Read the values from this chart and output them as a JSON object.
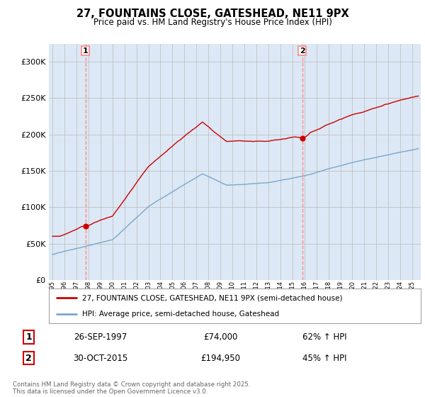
{
  "title": "27, FOUNTAINS CLOSE, GATESHEAD, NE11 9PX",
  "subtitle": "Price paid vs. HM Land Registry's House Price Index (HPI)",
  "purchase1_date_str": "26-SEP-1997",
  "purchase1_price": 74000,
  "purchase1_price_str": "£74,000",
  "purchase1_hpi": "62% ↑ HPI",
  "purchase1_year": 1997.75,
  "purchase2_date_str": "30-OCT-2015",
  "purchase2_price": 194950,
  "purchase2_price_str": "£194,950",
  "purchase2_hpi": "45% ↑ HPI",
  "purchase2_year": 2015.83,
  "red_line_color": "#cc0000",
  "blue_line_color": "#7ba7cc",
  "dashed_line_color": "#ff8888",
  "marker_color": "#cc0000",
  "grid_color": "#bbbbbb",
  "chart_bg_color": "#dce8f5",
  "background_color": "#ffffff",
  "legend1": "27, FOUNTAINS CLOSE, GATESHEAD, NE11 9PX (semi-detached house)",
  "legend2": "HPI: Average price, semi-detached house, Gateshead",
  "footer": "Contains HM Land Registry data © Crown copyright and database right 2025.\nThis data is licensed under the Open Government Licence v3.0.",
  "ylim": [
    0,
    325000
  ],
  "yticks": [
    0,
    50000,
    100000,
    150000,
    200000,
    250000,
    300000
  ],
  "ytick_labels": [
    "£0",
    "£50K",
    "£100K",
    "£150K",
    "£200K",
    "£250K",
    "£300K"
  ],
  "xstart": 1994.7,
  "xend": 2025.7
}
